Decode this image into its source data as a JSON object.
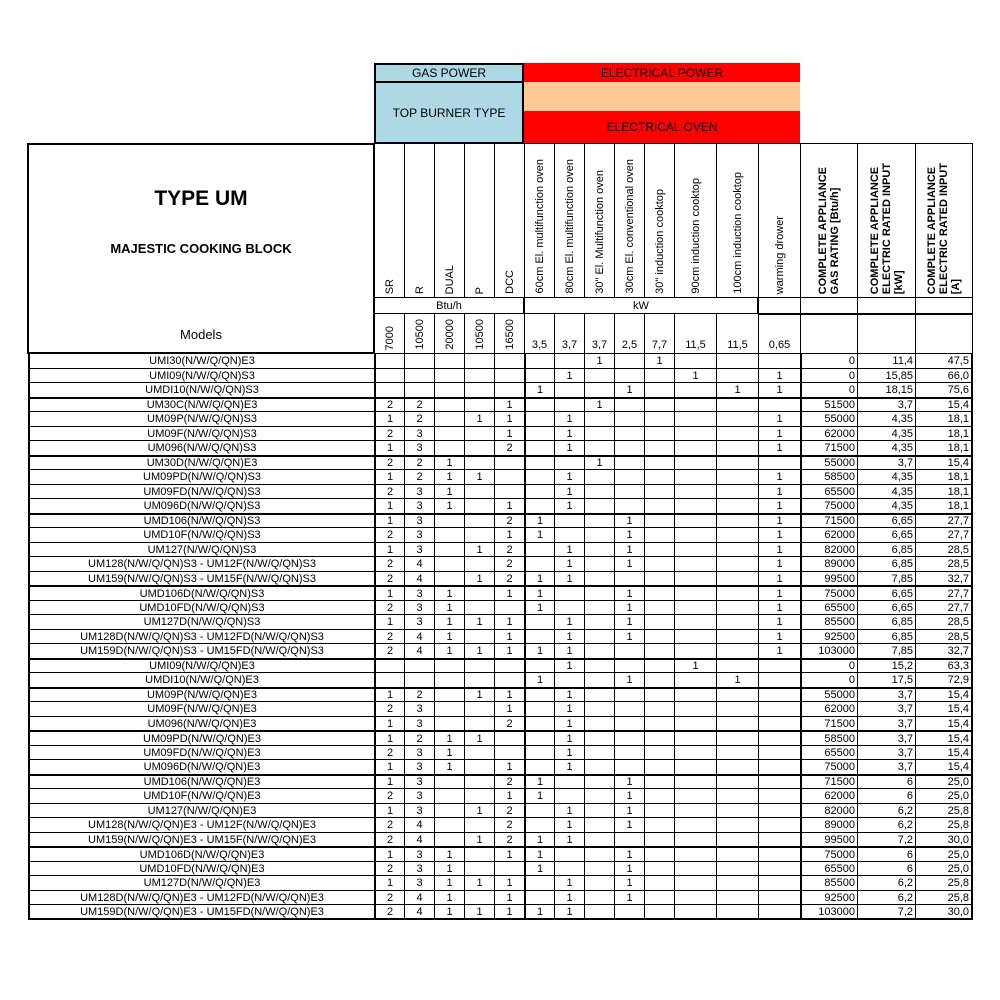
{
  "colors": {
    "gas_header": "#add8e6",
    "electrical_red": "#ff0000",
    "electrical_peach": "#fdc997",
    "border": "#000000"
  },
  "header": {
    "title": "TYPE UM",
    "subtitle": "MAJESTIC COOKING BLOCK",
    "models_label": "Models",
    "gas_power": "GAS POWER",
    "top_burner_type": "TOP BURNER TYPE",
    "electrical_power": "ELECTRICAL POWER",
    "electrical_oven": "ELECTRICAL OVEN",
    "unit_gas": "Btu/h",
    "unit_electric": "kW"
  },
  "columns": [
    {
      "label": "SR",
      "value": "7000"
    },
    {
      "label": "R",
      "value": "10500"
    },
    {
      "label": "DUAL",
      "value": "20000"
    },
    {
      "label": "P",
      "value": "10500"
    },
    {
      "label": "DCC",
      "value": "16500"
    },
    {
      "label": "60cm El. multifunction oven",
      "value": "3,5"
    },
    {
      "label": "80cm El. multifunction oven",
      "value": "3,7"
    },
    {
      "label": "30\" El. Multifunction oven",
      "value": "3,7"
    },
    {
      "label": "30cm El. conventional oven",
      "value": "2,5"
    },
    {
      "label": "30\" induction cooktop",
      "value": "7,7"
    },
    {
      "label": "90cm induction cooktop",
      "value": "11,5"
    },
    {
      "label": "100cm induction cooktop",
      "value": "11,5"
    },
    {
      "label": "warming drower",
      "value": "0,65"
    },
    {
      "label": "COMPLETE APPLIANCE\nGAS RATING [Btu/h]",
      "value": ""
    },
    {
      "label": "COMPLETE APPLIANCE\nELECTRIC RATED INPUT\n[kW]",
      "value": ""
    },
    {
      "label": "COMPLETE APPLIANCE\nELECTRIC RATED INPUT\n[A]",
      "value": ""
    }
  ],
  "rows": [
    [
      "UMI30(N/W/Q/QN)E3",
      "",
      "",
      "",
      "",
      "",
      "",
      "",
      "1",
      "",
      "1",
      "",
      "",
      "",
      "0",
      "11,4",
      "47,5"
    ],
    [
      "UMI09(N/W/Q/QN)S3",
      "",
      "",
      "",
      "",
      "",
      "",
      "1",
      "",
      "",
      "",
      "1",
      "",
      "1",
      "0",
      "15,85",
      "66,0"
    ],
    [
      "UMDI10(N/W/Q/QN)S3",
      "",
      "",
      "",
      "",
      "",
      "1",
      "",
      "",
      "1",
      "",
      "",
      "1",
      "1",
      "0",
      "18,15",
      "75,6"
    ],
    [
      "UM30C(N/W/Q/QN)E3",
      "2",
      "2",
      "",
      "",
      "1",
      "",
      "",
      "1",
      "",
      "",
      "",
      "",
      "",
      "51500",
      "3,7",
      "15,4"
    ],
    [
      "UM09P(N/W/Q/QN)S3",
      "1",
      "2",
      "",
      "1",
      "1",
      "",
      "1",
      "",
      "",
      "",
      "",
      "",
      "1",
      "55000",
      "4,35",
      "18,1"
    ],
    [
      "UM09F(N/W/Q/QN)S3",
      "2",
      "3",
      "",
      "",
      "1",
      "",
      "1",
      "",
      "",
      "",
      "",
      "",
      "1",
      "62000",
      "4,35",
      "18,1"
    ],
    [
      "UM096(N/W/Q/QN)S3",
      "1",
      "3",
      "",
      "",
      "2",
      "",
      "1",
      "",
      "",
      "",
      "",
      "",
      "1",
      "71500",
      "4,35",
      "18,1"
    ],
    [
      "UM30D(N/W/Q/QN)E3",
      "2",
      "2",
      "1",
      "",
      "",
      "",
      "",
      "1",
      "",
      "",
      "",
      "",
      "",
      "55000",
      "3,7",
      "15,4"
    ],
    [
      "UM09PD(N/W/Q/QN)S3",
      "1",
      "2",
      "1",
      "1",
      "",
      "",
      "1",
      "",
      "",
      "",
      "",
      "",
      "1",
      "58500",
      "4,35",
      "18,1"
    ],
    [
      "UM09FD(N/W/Q/QN)S3",
      "2",
      "3",
      "1",
      "",
      "",
      "",
      "1",
      "",
      "",
      "",
      "",
      "",
      "1",
      "65500",
      "4,35",
      "18,1"
    ],
    [
      "UM096D(N/W/Q/QN)S3",
      "1",
      "3",
      "1",
      "",
      "1",
      "",
      "1",
      "",
      "",
      "",
      "",
      "",
      "1",
      "75000",
      "4,35",
      "18,1"
    ],
    [
      "UMD106(N/W/Q/QN)S3",
      "1",
      "3",
      "",
      "",
      "2",
      "1",
      "",
      "",
      "1",
      "",
      "",
      "",
      "1",
      "71500",
      "6,65",
      "27,7"
    ],
    [
      "UMD10F(N/W/Q/QN)S3",
      "2",
      "3",
      "",
      "",
      "1",
      "1",
      "",
      "",
      "1",
      "",
      "",
      "",
      "1",
      "62000",
      "6,65",
      "27,7"
    ],
    [
      "UM127(N/W/Q/QN)S3",
      "1",
      "3",
      "",
      "1",
      "2",
      "",
      "1",
      "",
      "1",
      "",
      "",
      "",
      "1",
      "82000",
      "6,85",
      "28,5"
    ],
    [
      "UM128(N/W/Q/QN)S3 - UM12F(N/W/Q/QN)S3",
      "2",
      "4",
      "",
      "",
      "2",
      "",
      "1",
      "",
      "1",
      "",
      "",
      "",
      "1",
      "89000",
      "6,85",
      "28,5"
    ],
    [
      "UM159(N/W/Q/QN)S3 - UM15F(N/W/Q/QN)S3",
      "2",
      "4",
      "",
      "1",
      "2",
      "1",
      "1",
      "",
      "",
      "",
      "",
      "",
      "1",
      "99500",
      "7,85",
      "32,7"
    ],
    [
      "UMD106D(N/W/Q/QN)S3",
      "1",
      "3",
      "1",
      "",
      "1",
      "1",
      "",
      "",
      "1",
      "",
      "",
      "",
      "1",
      "75000",
      "6,65",
      "27,7"
    ],
    [
      "UMD10FD(N/W/Q/QN)S3",
      "2",
      "3",
      "1",
      "",
      "",
      "1",
      "",
      "",
      "1",
      "",
      "",
      "",
      "1",
      "65500",
      "6,65",
      "27,7"
    ],
    [
      "UM127D(N/W/Q/QN)S3",
      "1",
      "3",
      "1",
      "1",
      "1",
      "",
      "1",
      "",
      "1",
      "",
      "",
      "",
      "1",
      "85500",
      "6,85",
      "28,5"
    ],
    [
      "UM128D(N/W/Q/QN)S3 - UM12FD(N/W/Q/QN)S3",
      "2",
      "4",
      "1",
      "",
      "1",
      "",
      "1",
      "",
      "1",
      "",
      "",
      "",
      "1",
      "92500",
      "6,85",
      "28,5"
    ],
    [
      "UM159D(N/W/Q/QN)S3 - UM15FD(N/W/Q/QN)S3",
      "2",
      "4",
      "1",
      "1",
      "1",
      "1",
      "1",
      "",
      "",
      "",
      "",
      "",
      "1",
      "103000",
      "7,85",
      "32,7"
    ],
    [
      "UMI09(N/W/Q/QN)E3",
      "",
      "",
      "",
      "",
      "",
      "",
      "1",
      "",
      "",
      "",
      "1",
      "",
      "",
      "0",
      "15,2",
      "63,3"
    ],
    [
      "UMDI10(N/W/Q/QN)E3",
      "",
      "",
      "",
      "",
      "",
      "1",
      "",
      "",
      "1",
      "",
      "",
      "1",
      "",
      "0",
      "17,5",
      "72,9"
    ],
    [
      "UM09P(N/W/Q/QN)E3",
      "1",
      "2",
      "",
      "1",
      "1",
      "",
      "1",
      "",
      "",
      "",
      "",
      "",
      "",
      "55000",
      "3,7",
      "15,4"
    ],
    [
      "UM09F(N/W/Q/QN)E3",
      "2",
      "3",
      "",
      "",
      "1",
      "",
      "1",
      "",
      "",
      "",
      "",
      "",
      "",
      "62000",
      "3,7",
      "15,4"
    ],
    [
      "UM096(N/W/Q/QN)E3",
      "1",
      "3",
      "",
      "",
      "2",
      "",
      "1",
      "",
      "",
      "",
      "",
      "",
      "",
      "71500",
      "3,7",
      "15,4"
    ],
    [
      "UM09PD(N/W/Q/QN)E3",
      "1",
      "2",
      "1",
      "1",
      "",
      "",
      "1",
      "",
      "",
      "",
      "",
      "",
      "",
      "58500",
      "3,7",
      "15,4"
    ],
    [
      "UM09FD(N/W/Q/QN)E3",
      "2",
      "3",
      "1",
      "",
      "",
      "",
      "1",
      "",
      "",
      "",
      "",
      "",
      "",
      "65500",
      "3,7",
      "15,4"
    ],
    [
      "UM096D(N/W/Q/QN)E3",
      "1",
      "3",
      "1",
      "",
      "1",
      "",
      "1",
      "",
      "",
      "",
      "",
      "",
      "",
      "75000",
      "3,7",
      "15,4"
    ],
    [
      "UMD106(N/W/Q/QN)E3",
      "1",
      "3",
      "",
      "",
      "2",
      "1",
      "",
      "",
      "1",
      "",
      "",
      "",
      "",
      "71500",
      "6",
      "25,0"
    ],
    [
      "UMD10F(N/W/Q/QN)E3",
      "2",
      "3",
      "",
      "",
      "1",
      "1",
      "",
      "",
      "1",
      "",
      "",
      "",
      "",
      "62000",
      "6",
      "25,0"
    ],
    [
      "UM127(N/W/Q/QN)E3",
      "1",
      "3",
      "",
      "1",
      "2",
      "",
      "1",
      "",
      "1",
      "",
      "",
      "",
      "",
      "82000",
      "6,2",
      "25,8"
    ],
    [
      "UM128(N/W/Q/QN)E3 - UM12F(N/W/Q/QN)E3",
      "2",
      "4",
      "",
      "",
      "2",
      "",
      "1",
      "",
      "1",
      "",
      "",
      "",
      "",
      "89000",
      "6,2",
      "25,8"
    ],
    [
      "UM159(N/W/Q/QN)E3 - UM15F(N/W/Q/QN)E3",
      "2",
      "4",
      "",
      "1",
      "2",
      "1",
      "1",
      "",
      "",
      "",
      "",
      "",
      "",
      "99500",
      "7,2",
      "30,0"
    ],
    [
      "UMD106D(N/W/Q/QN)E3",
      "1",
      "3",
      "1",
      "",
      "1",
      "1",
      "",
      "",
      "1",
      "",
      "",
      "",
      "",
      "75000",
      "6",
      "25,0"
    ],
    [
      "UMD10FD(N/W/Q/QN)E3",
      "2",
      "3",
      "1",
      "",
      "",
      "1",
      "",
      "",
      "1",
      "",
      "",
      "",
      "",
      "65500",
      "6",
      "25,0"
    ],
    [
      "UM127D(N/W/Q/QN)E3",
      "1",
      "3",
      "1",
      "1",
      "1",
      "",
      "1",
      "",
      "1",
      "",
      "",
      "",
      "",
      "85500",
      "6,2",
      "25,8"
    ],
    [
      "UM128D(N/W/Q/QN)E3 - UM12FD(N/W/Q/QN)E3",
      "2",
      "4",
      "1",
      "",
      "1",
      "",
      "1",
      "",
      "1",
      "",
      "",
      "",
      "",
      "92500",
      "6,2",
      "25,8"
    ],
    [
      "UM159D(N/W/Q/QN)E3 - UM15FD(N/W/Q/QN)E3",
      "2",
      "4",
      "1",
      "1",
      "1",
      "1",
      "1",
      "",
      "",
      "",
      "",
      "",
      "",
      "103000",
      "7,2",
      "30,0"
    ]
  ]
}
